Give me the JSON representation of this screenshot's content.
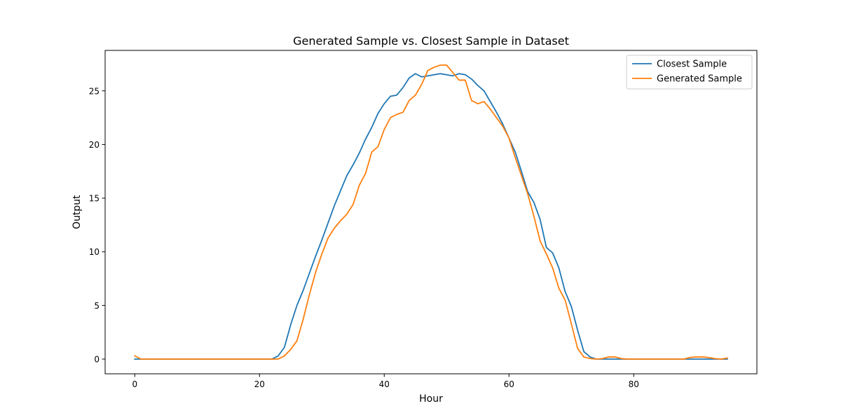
{
  "chart_data": {
    "type": "line",
    "title": "Generated Sample vs. Closest Sample in Dataset",
    "xlabel": "Hour",
    "ylabel": "Output",
    "xlim": [
      -4.75,
      99.75
    ],
    "ylim": [
      -1.37,
      28.77
    ],
    "xticks": [
      0,
      20,
      40,
      60,
      80
    ],
    "yticks": [
      0,
      5,
      10,
      15,
      20,
      25
    ],
    "grid": false,
    "legend": "top-right",
    "series": [
      {
        "name": "Closest Sample",
        "color": "#1f77b4",
        "x": [
          0,
          20,
          22,
          23,
          24,
          25,
          26,
          27,
          28,
          29,
          30,
          31,
          32,
          33,
          34,
          35,
          36,
          37,
          38,
          39,
          40,
          41,
          42,
          43,
          44,
          45,
          46,
          47,
          48,
          49,
          50,
          51,
          52,
          53,
          54,
          55,
          56,
          57,
          58,
          59,
          60,
          61,
          62,
          63,
          64,
          65,
          66,
          67,
          68,
          69,
          70,
          71,
          72,
          73,
          74,
          75,
          80,
          90,
          95
        ],
        "y": [
          0,
          0,
          0,
          0.3,
          1.1,
          3.2,
          5.0,
          6.4,
          8.0,
          9.6,
          11.1,
          12.7,
          14.3,
          15.7,
          17.1,
          18.1,
          19.2,
          20.5,
          21.6,
          22.9,
          23.8,
          24.5,
          24.6,
          25.3,
          26.2,
          26.6,
          26.3,
          26.4,
          26.5,
          26.6,
          26.5,
          26.4,
          26.6,
          26.5,
          26.1,
          25.5,
          25.0,
          24.0,
          23.0,
          21.9,
          20.6,
          19.3,
          17.5,
          15.6,
          14.6,
          13.0,
          10.4,
          9.9,
          8.5,
          6.3,
          4.9,
          2.7,
          0.7,
          0.2,
          0,
          0,
          0,
          0,
          0
        ]
      },
      {
        "name": "Generated Sample",
        "color": "#ff7f0e",
        "x": [
          0,
          1,
          20,
          23,
          24,
          25,
          26,
          27,
          28,
          29,
          30,
          31,
          32,
          33,
          34,
          35,
          36,
          37,
          38,
          39,
          40,
          41,
          42,
          43,
          44,
          45,
          46,
          47,
          48,
          49,
          50,
          51,
          52,
          53,
          54,
          55,
          56,
          57,
          58,
          59,
          60,
          61,
          62,
          63,
          64,
          65,
          66,
          67,
          68,
          69,
          70,
          71,
          72,
          73,
          74,
          75,
          76,
          77,
          78,
          79,
          80,
          88,
          89,
          90,
          91,
          92,
          93,
          94,
          95
        ],
        "y": [
          0.3,
          0,
          0,
          0,
          0.3,
          0.9,
          1.7,
          3.7,
          6.0,
          8.1,
          9.8,
          11.3,
          12.2,
          12.9,
          13.5,
          14.4,
          16.2,
          17.3,
          19.3,
          19.8,
          21.4,
          22.5,
          22.8,
          23.0,
          24.1,
          24.6,
          25.6,
          26.9,
          27.2,
          27.4,
          27.4,
          26.7,
          26.0,
          26.0,
          24.1,
          23.8,
          24.0,
          23.3,
          22.5,
          21.7,
          20.6,
          18.8,
          17.1,
          15.4,
          13.3,
          11.0,
          9.8,
          8.5,
          6.6,
          5.5,
          3.3,
          1.0,
          0.2,
          0.05,
          0,
          0.05,
          0.2,
          0.2,
          0.05,
          0,
          0,
          0,
          0.15,
          0.2,
          0.2,
          0.15,
          0.05,
          0,
          0.1
        ]
      }
    ]
  }
}
